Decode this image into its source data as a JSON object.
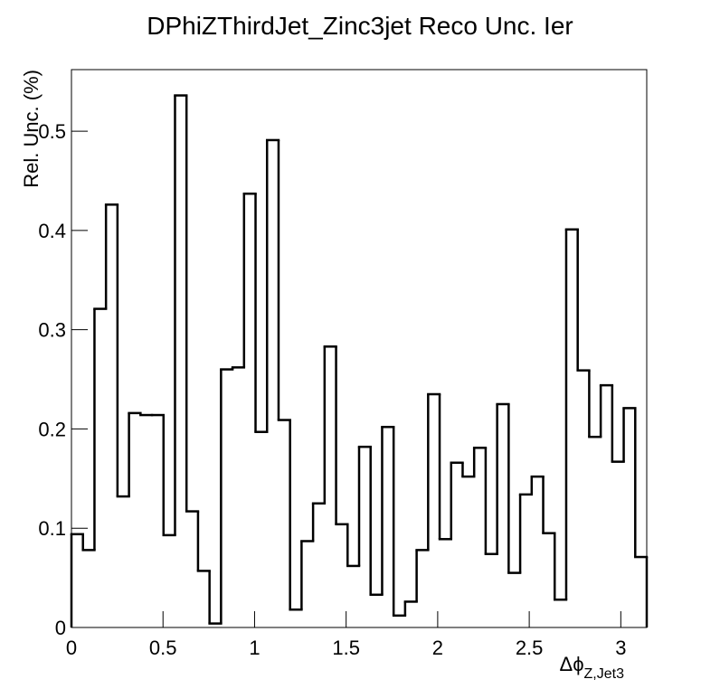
{
  "chart_data": {
    "type": "histogram",
    "title": "DPhiZThirdJet_Zinc3jet Reco Unc. Ier",
    "xlabel": "Δϕ",
    "xlabel_sub": "Z,Jet3",
    "ylabel": "Rel. Unc. (%)",
    "bins": [
      0,
      0.0628,
      0.1257,
      0.1885,
      0.2513,
      0.3142,
      0.377,
      0.4398,
      0.5027,
      0.5655,
      0.6283,
      0.6912,
      0.754,
      0.8168,
      0.8796,
      0.9425,
      1.0053,
      1.0681,
      1.131,
      1.1938,
      1.2566,
      1.3195,
      1.3823,
      1.4451,
      1.508,
      1.5708,
      1.6336,
      1.6965,
      1.7593,
      1.8221,
      1.885,
      1.9478,
      2.0106,
      2.0735,
      2.1363,
      2.1991,
      2.2619,
      2.3248,
      2.3876,
      2.4504,
      2.5133,
      2.5761,
      2.6389,
      2.7018,
      2.7646,
      2.8274,
      2.8903,
      2.9531,
      3.0159,
      3.0788,
      3.1416
    ],
    "values": [
      0.094,
      0.078,
      0.321,
      0.426,
      0.132,
      0.216,
      0.214,
      0.214,
      0.093,
      0.536,
      0.117,
      0.057,
      0.004,
      0.26,
      0.262,
      0.437,
      0.197,
      0.491,
      0.209,
      0.018,
      0.087,
      0.125,
      0.283,
      0.104,
      0.062,
      0.182,
      0.033,
      0.202,
      0.012,
      0.026,
      0.078,
      0.235,
      0.089,
      0.166,
      0.152,
      0.181,
      0.074,
      0.225,
      0.055,
      0.134,
      0.152,
      0.095,
      0.028,
      0.401,
      0.259,
      0.192,
      0.244,
      0.167,
      0.221,
      0.071
    ],
    "color": "#000000",
    "xlim": [
      0,
      3.1416
    ],
    "xticks": [
      0,
      0.5,
      1,
      1.5,
      2,
      2.5,
      3
    ],
    "ylim": [
      0,
      0.562
    ],
    "yticks": [
      0,
      0.1,
      0.2,
      0.3,
      0.4,
      0.5
    ]
  }
}
